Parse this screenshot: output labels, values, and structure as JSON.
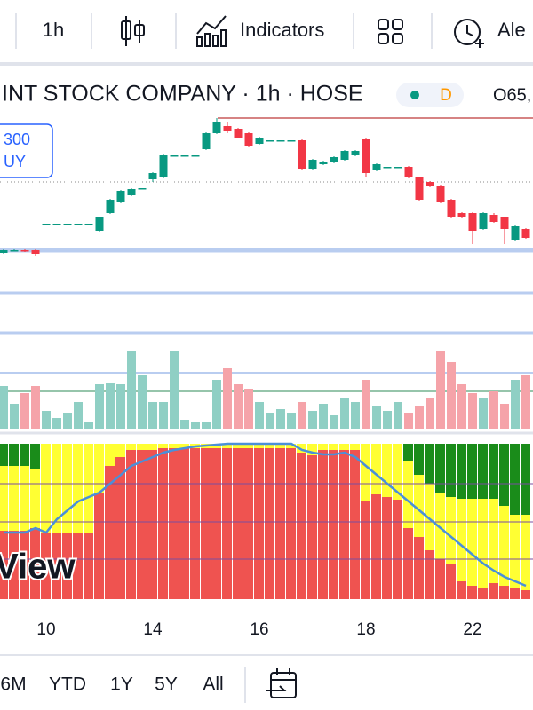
{
  "toolbar": {
    "interval": "1h",
    "indicators": "Indicators",
    "alert": "Ale"
  },
  "legend": {
    "title": "INT STOCK COMPANY · 1h · HOSE",
    "status": "D",
    "ohlc": "O65,"
  },
  "order_box": {
    "price": "300",
    "side": "UY"
  },
  "watermark": "View",
  "chart_data": {
    "type": "candlestick",
    "x_labels": [
      "10",
      "14",
      "16",
      "18",
      "22"
    ],
    "candles": {
      "open": [
        15,
        18,
        18,
        18,
        48,
        48,
        48,
        48,
        48,
        40,
        60,
        72,
        80,
        88,
        98,
        100,
        125,
        125,
        125,
        132,
        150,
        158,
        155,
        150,
        138,
        142,
        142,
        142,
        142,
        110,
        115,
        117,
        120,
        125,
        143,
        108,
        112,
        112,
        112,
        100,
        95,
        90,
        75,
        60,
        60,
        42,
        58,
        55,
        30,
        42
      ],
      "high": [
        19,
        19,
        19,
        19,
        48,
        48,
        48,
        48,
        48,
        56,
        76,
        86,
        88,
        88,
        106,
        126,
        125,
        125,
        125,
        151,
        167,
        162,
        156,
        151,
        146,
        142,
        142,
        142,
        143,
        121,
        119,
        124,
        131,
        131,
        145,
        116,
        112,
        112,
        113,
        101,
        96,
        91,
        76,
        61,
        61,
        61,
        60,
        56,
        46,
        43
      ],
      "low": [
        14,
        17,
        16,
        12,
        48,
        48,
        48,
        48,
        48,
        39,
        59,
        71,
        79,
        88,
        95,
        99,
        125,
        125,
        125,
        131,
        149,
        150,
        144,
        134,
        137,
        142,
        142,
        142,
        109,
        109,
        114,
        116,
        119,
        124,
        100,
        107,
        112,
        112,
        99,
        74,
        89,
        71,
        54,
        54,
        25,
        41,
        49,
        25,
        29,
        31
      ],
      "close": [
        18,
        18,
        17,
        14,
        48,
        48,
        48,
        48,
        48,
        55,
        75,
        85,
        87,
        88,
        105,
        125,
        125,
        125,
        125,
        150,
        162,
        152,
        145,
        135,
        145,
        142,
        142,
        142,
        110,
        120,
        118,
        123,
        130,
        130,
        105,
        115,
        112,
        112,
        100,
        75,
        90,
        72,
        55,
        55,
        40,
        60,
        50,
        42,
        45,
        32
      ]
    },
    "volume": [
      48,
      28,
      40,
      48,
      20,
      12,
      18,
      30,
      8,
      50,
      52,
      50,
      88,
      60,
      30,
      30,
      88,
      10,
      8,
      8,
      55,
      68,
      50,
      45,
      30,
      18,
      22,
      18,
      30,
      20,
      28,
      15,
      35,
      30,
      55,
      25,
      20,
      30,
      18,
      25,
      35,
      88,
      75,
      50,
      40,
      35,
      42,
      28,
      55,
      60
    ],
    "indicator": {
      "red": [
        77,
        77,
        77,
        80,
        75,
        75,
        75,
        75,
        75,
        120,
        150,
        160,
        168,
        168,
        168,
        170,
        170,
        170,
        170,
        170,
        170,
        170,
        170,
        170,
        170,
        170,
        170,
        170,
        165,
        162,
        168,
        168,
        168,
        168,
        110,
        118,
        115,
        112,
        80,
        70,
        55,
        45,
        40,
        20,
        15,
        12,
        18,
        15,
        12,
        10
      ],
      "green": [
        25,
        25,
        25,
        28,
        0,
        0,
        0,
        0,
        0,
        0,
        0,
        0,
        0,
        0,
        0,
        0,
        0,
        0,
        0,
        0,
        0,
        0,
        0,
        0,
        0,
        0,
        0,
        0,
        0,
        0,
        0,
        0,
        0,
        0,
        0,
        0,
        0,
        0,
        20,
        35,
        45,
        55,
        60,
        62,
        62,
        62,
        62,
        70,
        80,
        80
      ],
      "line": [
        75,
        75,
        75,
        80,
        75,
        90,
        100,
        110,
        115,
        120,
        130,
        140,
        150,
        155,
        160,
        165,
        168,
        170,
        172,
        173,
        174,
        175,
        175,
        175,
        175,
        175,
        175,
        175,
        168,
        165,
        163,
        163,
        165,
        160,
        150,
        140,
        130,
        120,
        110,
        100,
        90,
        80,
        70,
        60,
        50,
        40,
        32,
        25,
        20,
        15
      ]
    }
  },
  "range_buttons": [
    "6M",
    "YTD",
    "1Y",
    "5Y",
    "All"
  ]
}
